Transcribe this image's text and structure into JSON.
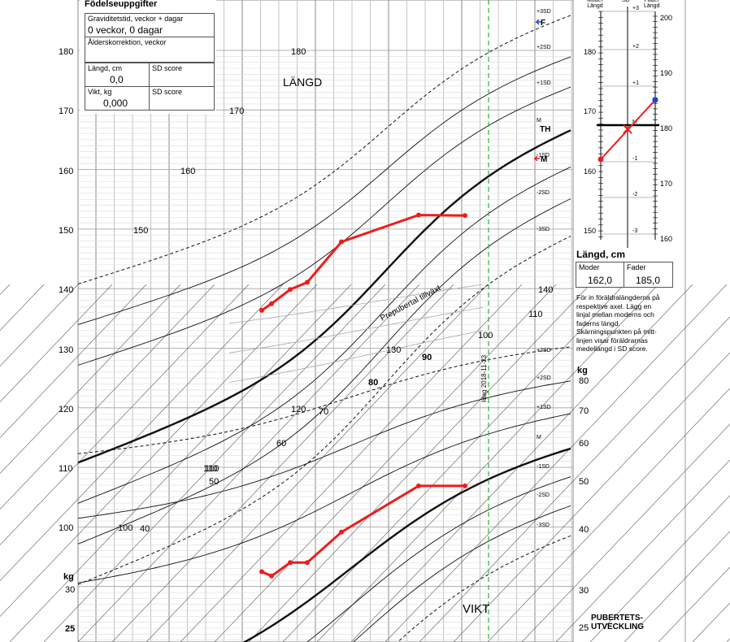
{
  "birth_box": {
    "title": "Födelseuppgifter",
    "gestation_label": "Graviditetstid, veckor + dagar",
    "gestation_value": "0 veckor, 0 dagar",
    "age_correction_label": "Ålderskorrektion, veckor",
    "length_label": "Längd, cm",
    "length_sd_label": "SD score",
    "length_value": "0,0",
    "weight_label": "Vikt, kg",
    "weight_sd_label": "SD score",
    "weight_value": "0,000"
  },
  "panel_labels": {
    "height": "LÄNGD",
    "weight": "VIKT",
    "prepubertal": "Prepubertal tillväxt",
    "date_line": "Idag 2018-11-23",
    "kg_left": "kg",
    "kg_right": "kg",
    "puberty": "PUBERTETS-\nUTVECKLING"
  },
  "parent_panel": {
    "header_mother": "Moder\nLängd",
    "header_sd": "SD",
    "header_father": "Fader\nLängd",
    "title": "Längd, cm",
    "mother_label": "Moder",
    "father_label": "Fader",
    "mother_value": "162,0",
    "father_value": "185,0",
    "note": "För in föräldralängderna på respektive axel. Lägg en linjal mellan moderns och faderns längd. Skärningspunkten på mitt-linjen visar föräldrarnas medellängd i SD score.",
    "left_ticks": [
      "180",
      "170",
      "160",
      "150"
    ],
    "right_ticks": [
      "200",
      "190",
      "180",
      "170",
      "160"
    ],
    "sd_ticks": [
      "+3",
      "+2",
      "+1",
      "M",
      "-1",
      "-2",
      "-3"
    ],
    "colors": {
      "line": "#ee1c1c",
      "mother_dot": "#ee1c1c",
      "father_dot": "#1e3fdc"
    }
  },
  "markers": {
    "father": "F",
    "target": "TH",
    "mother": "M"
  },
  "chart_data": [
    {
      "type": "line",
      "title": "LÄNGD",
      "ylabel": "Längd, cm",
      "left_axis_ticks": [
        "180",
        "170",
        "160",
        "150",
        "140",
        "130",
        "120",
        "110",
        "100"
      ],
      "diagonal_labels": [
        "180",
        "170",
        "160",
        "150",
        "140",
        "130",
        "120",
        "110",
        "100"
      ],
      "sd_curve_labels": [
        "+3SD",
        "+2SD",
        "+1SD",
        "M",
        "-1SD",
        "-2SD",
        "-3SD"
      ],
      "right_axis_ticks": [
        "140"
      ],
      "series": [
        {
          "name": "Längd",
          "color": "#ee1c1c",
          "values": [
            136.5,
            137.6,
            140.0,
            141.2,
            148.0,
            152.5,
            152.4
          ]
        }
      ]
    },
    {
      "type": "line",
      "title": "VIKT",
      "ylabel": "kg",
      "left_axis_ticks": [
        "30",
        "25"
      ],
      "diagonal_labels": [
        "110",
        "100",
        "90",
        "80",
        "70",
        "60",
        "50",
        "40"
      ],
      "sd_curve_labels": [
        "+3SD",
        "+2SD",
        "+1SD",
        "M",
        "-1SD",
        "-2SD",
        "-3SD"
      ],
      "right_axis_ticks": [
        "110",
        "80",
        "70",
        "60",
        "50",
        "40",
        "30",
        "25"
      ],
      "series": [
        {
          "name": "Vikt",
          "color": "#ee1c1c",
          "values": [
            33.0,
            32.3,
            34.5,
            34.5,
            39.5,
            49.0,
            49.0
          ]
        }
      ]
    }
  ]
}
